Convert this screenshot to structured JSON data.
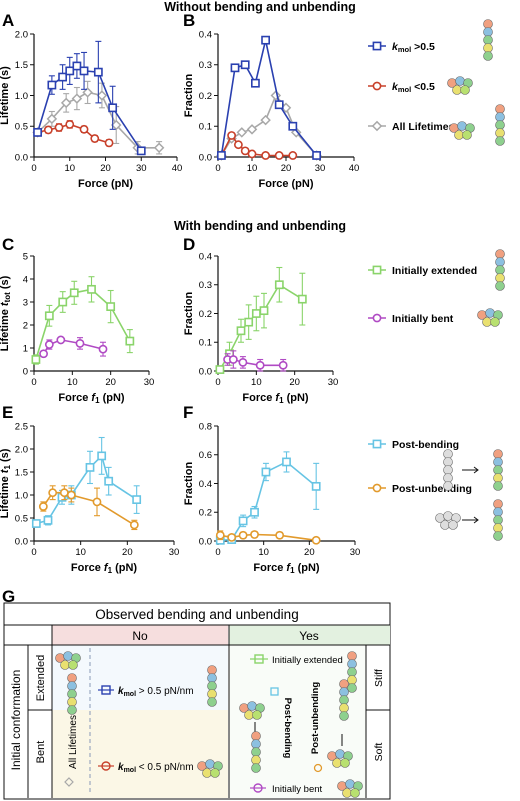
{
  "colors": {
    "blue": "#2a40b0",
    "red": "#c8402a",
    "grey": "#a8a8a8",
    "green": "#8ad46a",
    "purple": "#b04ac4",
    "cyan": "#66c4e4",
    "orange": "#e29a2c",
    "no_header": "#f6dede",
    "yes_header": "#e3f1e0",
    "extended_bg": "#f4f9fd",
    "bent_bg": "#fbf7e6"
  },
  "titles": {
    "section1": "Without bending and unbending",
    "section2": "With bending and unbending"
  },
  "panels": {
    "A": "A",
    "B": "B",
    "C": "C",
    "D": "D",
    "E": "E",
    "F": "F",
    "G": "G"
  },
  "axes": {
    "lifetime": "Lifetime (s)",
    "lifetime_tot_prefix": "Lifetime ",
    "lifetime_tot_var": "t",
    "lifetime_tot_sub": "tot",
    "lifetime_tot_suffix": " (s)",
    "lifetime_f1_prefix": "Lifetime ",
    "lifetime_f1_var": "t",
    "lifetime_f1_sub": "1",
    "lifetime_f1_suffix": " (s)",
    "fraction": "Fraction",
    "force": "Force (pN)",
    "force_f1_prefix": "Force ",
    "force_f1_var": "f",
    "force_f1_sub": "1",
    "force_f1_suffix": " (pN)"
  },
  "legends": {
    "row1": [
      {
        "k": "k",
        "sub": "mol",
        "rest": " >0.5",
        "color": "blue",
        "marker": "square"
      },
      {
        "k": "k",
        "sub": "mol",
        "rest": " <0.5",
        "color": "red",
        "marker": "circle"
      },
      {
        "text": "All Lifetimes",
        "color": "grey",
        "marker": "diamond"
      }
    ],
    "row2": [
      {
        "text": "Initially extended",
        "color": "green",
        "marker": "square"
      },
      {
        "text": "Initially bent",
        "color": "purple",
        "marker": "circle"
      }
    ],
    "row3": [
      {
        "text": "Post-bending",
        "color": "cyan",
        "marker": "square"
      },
      {
        "text": "Post-unbending",
        "color": "orange",
        "marker": "circle"
      }
    ]
  },
  "chart_data": [
    {
      "panel": "A",
      "type": "line",
      "xlabel": "Force (pN)",
      "ylabel": "Lifetime (s)",
      "xlim": [
        0,
        40
      ],
      "ylim": [
        0,
        2.0
      ],
      "xticks": [
        0,
        10,
        20,
        30,
        40
      ],
      "yticks": [
        0.0,
        0.5,
        1.0,
        1.5,
        2.0
      ],
      "series": [
        {
          "color": "grey",
          "marker": "diamond",
          "x": [
            1,
            5,
            9,
            12,
            15,
            19,
            23,
            29,
            35
          ],
          "y": [
            0.4,
            0.62,
            0.88,
            0.95,
            1.05,
            1.0,
            0.52,
            0.15,
            0.15
          ],
          "err": [
            0.05,
            0.12,
            0.15,
            0.18,
            0.18,
            0.2,
            0.3,
            0.1,
            0.1
          ]
        },
        {
          "color": "red",
          "marker": "circle",
          "x": [
            1,
            4,
            7,
            10,
            14,
            17,
            21
          ],
          "y": [
            0.4,
            0.44,
            0.48,
            0.53,
            0.45,
            0.3,
            0.23
          ],
          "err": [
            0.05,
            0.05,
            0.06,
            0.06,
            0.05,
            0.05,
            0.05
          ]
        },
        {
          "color": "blue",
          "marker": "square",
          "x": [
            1,
            5,
            8,
            10,
            12,
            14,
            18,
            22,
            30
          ],
          "y": [
            0.4,
            1.17,
            1.3,
            1.4,
            1.48,
            1.4,
            1.38,
            0.8,
            0.1
          ],
          "err": [
            0.05,
            0.15,
            0.2,
            0.22,
            0.2,
            0.3,
            0.5,
            0.35,
            0.05
          ]
        }
      ]
    },
    {
      "panel": "B",
      "type": "line",
      "xlabel": "Force (pN)",
      "ylabel": "Fraction",
      "xlim": [
        0,
        40
      ],
      "ylim": [
        0,
        0.4
      ],
      "xticks": [
        0,
        10,
        20,
        30,
        40
      ],
      "yticks": [
        0.0,
        0.1,
        0.2,
        0.3,
        0.4
      ],
      "series": [
        {
          "color": "grey",
          "marker": "diamond",
          "x": [
            1,
            4,
            7,
            10,
            14,
            17,
            20,
            23,
            29
          ],
          "y": [
            0.005,
            0.06,
            0.08,
            0.09,
            0.12,
            0.2,
            0.16,
            0.08,
            0.005
          ]
        },
        {
          "color": "red",
          "marker": "circle",
          "x": [
            1,
            4,
            6,
            8,
            10,
            14,
            18,
            22
          ],
          "y": [
            0.005,
            0.07,
            0.04,
            0.02,
            0.01,
            0.005,
            0.005,
            0.005
          ]
        },
        {
          "color": "blue",
          "marker": "square",
          "x": [
            1,
            5,
            8,
            11,
            14,
            18,
            22,
            29
          ],
          "y": [
            0.005,
            0.29,
            0.3,
            0.24,
            0.38,
            0.17,
            0.1,
            0.005
          ]
        }
      ]
    },
    {
      "panel": "C",
      "type": "line",
      "xlabel": "Force f1 (pN)",
      "ylabel": "Lifetime t_tot (s)",
      "xlim": [
        0,
        30
      ],
      "ylim": [
        0,
        5
      ],
      "xticks": [
        0,
        10,
        20,
        30
      ],
      "yticks": [
        0,
        1,
        2,
        3,
        4,
        5
      ],
      "series": [
        {
          "color": "green",
          "marker": "square",
          "x": [
            0.5,
            4,
            7.5,
            10.5,
            15,
            20,
            25
          ],
          "y": [
            0.5,
            2.4,
            3.0,
            3.4,
            3.55,
            2.8,
            1.3
          ],
          "err": [
            0.2,
            0.45,
            0.45,
            0.5,
            0.55,
            0.7,
            0.5
          ]
        },
        {
          "color": "purple",
          "marker": "circle",
          "x": [
            2.5,
            4,
            7,
            12,
            18
          ],
          "y": [
            0.75,
            1.15,
            1.35,
            1.2,
            0.95
          ],
          "err": [
            0.1,
            0.2,
            0.1,
            0.25,
            0.3
          ]
        }
      ]
    },
    {
      "panel": "D",
      "type": "line",
      "xlabel": "Force f1 (pN)",
      "ylabel": "Fraction",
      "xlim": [
        0,
        30
      ],
      "ylim": [
        0,
        0.4
      ],
      "xticks": [
        0,
        10,
        20,
        30
      ],
      "yticks": [
        0.0,
        0.1,
        0.2,
        0.3,
        0.4
      ],
      "series": [
        {
          "color": "green",
          "marker": "square",
          "x": [
            0.5,
            3,
            6,
            8,
            10,
            12,
            16,
            22
          ],
          "y": [
            0.005,
            0.06,
            0.14,
            0.17,
            0.2,
            0.21,
            0.3,
            0.25
          ],
          "err": [
            0.005,
            0.04,
            0.04,
            0.06,
            0.06,
            0.06,
            0.06,
            0.09
          ]
        },
        {
          "color": "purple",
          "marker": "circle",
          "x": [
            2.5,
            4,
            6.5,
            11,
            17
          ],
          "y": [
            0.04,
            0.04,
            0.03,
            0.02,
            0.02
          ],
          "err": [
            0.02,
            0.03,
            0.02,
            0.02,
            0.02
          ]
        }
      ]
    },
    {
      "panel": "E",
      "type": "line",
      "xlabel": "Force f1 (pN)",
      "ylabel": "Lifetime t1 (s)",
      "xlim": [
        0,
        30
      ],
      "ylim": [
        0,
        2.5
      ],
      "xticks": [
        0,
        10,
        20,
        30
      ],
      "yticks": [
        0.0,
        0.5,
        1.0,
        1.5,
        2.0,
        2.5
      ],
      "series": [
        {
          "color": "cyan",
          "marker": "square",
          "x": [
            0.5,
            3,
            6,
            8,
            12,
            14.5,
            16,
            22
          ],
          "y": [
            0.38,
            0.45,
            0.95,
            1.0,
            1.6,
            1.85,
            1.3,
            0.9
          ],
          "err": [
            0.05,
            0.1,
            0.15,
            0.2,
            0.35,
            0.4,
            0.3,
            0.3
          ]
        },
        {
          "color": "orange",
          "marker": "circle",
          "x": [
            2,
            4,
            6.5,
            8,
            13.5,
            21.5
          ],
          "y": [
            0.75,
            1.05,
            1.05,
            1.0,
            0.85,
            0.35
          ],
          "err": [
            0.1,
            0.15,
            0.15,
            0.15,
            0.3,
            0.1
          ]
        }
      ]
    },
    {
      "panel": "F",
      "type": "line",
      "xlabel": "Force f1 (pN)",
      "ylabel": "Fraction",
      "xlim": [
        0,
        30
      ],
      "ylim": [
        0,
        0.8
      ],
      "xticks": [
        0,
        10,
        20,
        30
      ],
      "yticks": [
        0.0,
        0.2,
        0.4,
        0.6,
        0.8
      ],
      "series": [
        {
          "color": "cyan",
          "marker": "square",
          "x": [
            0.5,
            3,
            5.5,
            8,
            10.5,
            15,
            21.5
          ],
          "y": [
            0.005,
            0.01,
            0.14,
            0.2,
            0.48,
            0.55,
            0.38
          ],
          "err": [
            0.005,
            0.02,
            0.04,
            0.04,
            0.06,
            0.07,
            0.16
          ]
        },
        {
          "color": "orange",
          "marker": "circle",
          "x": [
            0.5,
            3,
            5.5,
            8,
            13.5,
            21.5
          ],
          "y": [
            0.04,
            0.025,
            0.04,
            0.045,
            0.04,
            0.005
          ],
          "err": [
            0.03,
            0.02,
            0.02,
            0.02,
            0.02,
            0.005
          ]
        }
      ]
    }
  ],
  "table": {
    "title": "Observed bending and unbending",
    "col_no": "No",
    "col_yes": "Yes",
    "row_group": "Initial conformation",
    "row_extended": "Extended",
    "row_bent": "Bent",
    "all_lifetimes": "All Lifetimes",
    "kmol_high_rest": " > 0.5 pN/nm",
    "kmol_low_rest": " < 0.5 pN/nm",
    "k": "k",
    "k_sub": "mol",
    "initially_extended": "Initially extended",
    "initially_bent": "Initially bent",
    "post_bending": "Post-bending",
    "post_unbending": "Post-unbending",
    "stiff": "Stiff",
    "soft": "Soft"
  }
}
